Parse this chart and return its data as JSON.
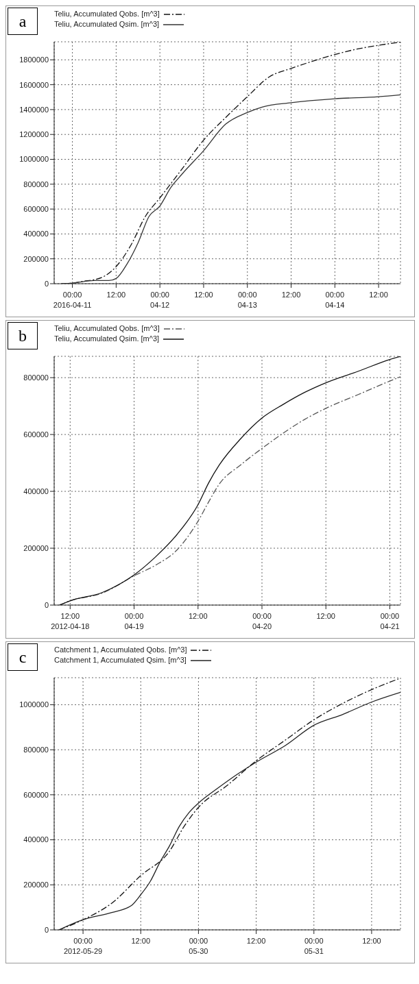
{
  "chart_data": [
    {
      "type": "line",
      "annotations": [
        "a"
      ],
      "legend": "top left",
      "grid": true,
      "marker": "none",
      "xlim": [
        "2016-04-10T19:00",
        "2016-04-14T18:00"
      ],
      "ylim": [
        0,
        1945000
      ],
      "xticks": [
        {
          "value": "2016-04-11T00:00",
          "label": "00:00\n2016-04-11"
        },
        {
          "value": "2016-04-11T12:00",
          "label": "12:00"
        },
        {
          "value": "2016-04-12T00:00",
          "label": "00:00\n04-12"
        },
        {
          "value": "2016-04-12T12:00",
          "label": "12:00"
        },
        {
          "value": "2016-04-13T00:00",
          "label": "00:00\n04-13"
        },
        {
          "value": "2016-04-13T12:00",
          "label": "12:00"
        },
        {
          "value": "2016-04-14T00:00",
          "label": "00:00\n04-14"
        },
        {
          "value": "2016-04-14T12:00",
          "label": "12:00"
        }
      ],
      "yticks": [
        0,
        200000,
        400000,
        600000,
        800000,
        1000000,
        1200000,
        1400000,
        1600000,
        1800000
      ],
      "series": [
        {
          "name": "Teliu, Accumulated Qobs. [m^3]",
          "color": "#111111",
          "line_style": "dashed",
          "x": [
            "2016-04-10T21:00",
            "2016-04-11T00:00",
            "2016-04-11T03:00",
            "2016-04-11T06:00",
            "2016-04-11T09:00",
            "2016-04-11T12:00",
            "2016-04-11T16:00",
            "2016-04-11T20:00",
            "2016-04-12T00:00",
            "2016-04-12T06:00",
            "2016-04-12T12:00",
            "2016-04-12T18:00",
            "2016-04-13T00:00",
            "2016-04-13T06:00",
            "2016-04-13T12:00",
            "2016-04-13T18:00",
            "2016-04-14T00:00",
            "2016-04-14T06:00",
            "2016-04-14T12:00",
            "2016-04-14T18:00"
          ],
          "values": [
            0,
            5000,
            20000,
            32000,
            64000,
            138000,
            307000,
            540000,
            690000,
            920000,
            1155000,
            1335000,
            1504000,
            1663000,
            1731000,
            1790000,
            1843000,
            1886000,
            1917000,
            1943000
          ]
        },
        {
          "name": "Teliu, Accumulated Qsim. [m^3]",
          "color": "#333333",
          "line_style": "solid",
          "x": [
            "2016-04-10T21:00",
            "2016-04-11T00:00",
            "2016-04-11T06:00",
            "2016-04-11T10:00",
            "2016-04-11T12:00",
            "2016-04-11T15:00",
            "2016-04-11T18:00",
            "2016-04-11T21:00",
            "2016-04-12T00:00",
            "2016-04-12T03:00",
            "2016-04-12T06:00",
            "2016-04-12T12:00",
            "2016-04-12T18:00",
            "2016-04-13T00:00",
            "2016-04-13T04:00",
            "2016-04-13T12:00",
            "2016-04-14T00:00",
            "2016-04-14T12:00",
            "2016-04-14T18:00"
          ],
          "values": [
            0,
            5000,
            25000,
            25000,
            42000,
            159000,
            328000,
            540000,
            625000,
            773000,
            879000,
            1070000,
            1282000,
            1377000,
            1420000,
            1455000,
            1487000,
            1504000,
            1519000
          ]
        }
      ]
    },
    {
      "type": "line",
      "annotations": [
        "b"
      ],
      "legend": "top left",
      "grid": true,
      "marker": "none",
      "xlim": [
        "2012-04-18T09:00",
        "2012-04-21T02:00"
      ],
      "ylim": [
        0,
        875000
      ],
      "xticks": [
        {
          "value": "2012-04-18T12:00",
          "label": "12:00\n2012-04-18"
        },
        {
          "value": "2012-04-19T00:00",
          "label": "00:00\n04-19"
        },
        {
          "value": "2012-04-19T12:00",
          "label": "12:00"
        },
        {
          "value": "2012-04-20T00:00",
          "label": "00:00\n04-20"
        },
        {
          "value": "2012-04-20T12:00",
          "label": "12:00"
        },
        {
          "value": "2012-04-21T00:00",
          "label": "00:00\n04-21"
        }
      ],
      "yticks": [
        0,
        200000,
        400000,
        600000,
        800000
      ],
      "series": [
        {
          "name": "Teliu, Accumulated Qobs. [m^3]",
          "color": "#555555",
          "line_style": "dashed",
          "x": [
            "2012-04-18T10:00",
            "2012-04-18T12:00",
            "2012-04-18T18:00",
            "2012-04-19T00:00",
            "2012-04-19T04:00",
            "2012-04-19T08:00",
            "2012-04-19T12:00",
            "2012-04-19T14:00",
            "2012-04-19T16:00",
            "2012-04-19T20:00",
            "2012-04-20T00:00",
            "2012-04-20T04:00",
            "2012-04-20T08:00",
            "2012-04-20T12:00",
            "2012-04-20T18:00",
            "2012-04-21T00:00",
            "2012-04-21T02:00"
          ],
          "values": [
            0,
            15000,
            42000,
            103000,
            140000,
            193000,
            295000,
            363000,
            426000,
            493000,
            551000,
            605000,
            653000,
            692000,
            740000,
            788000,
            803000
          ]
        },
        {
          "name": "Teliu, Accumulated Qsim. [m^3]",
          "color": "#111111",
          "line_style": "solid",
          "x": [
            "2012-04-18T10:00",
            "2012-04-18T12:00",
            "2012-04-18T18:00",
            "2012-04-19T00:00",
            "2012-04-19T04:00",
            "2012-04-19T08:00",
            "2012-04-19T12:00",
            "2012-04-19T14:00",
            "2012-04-19T16:00",
            "2012-04-19T20:00",
            "2012-04-20T00:00",
            "2012-04-20T04:00",
            "2012-04-20T08:00",
            "2012-04-20T12:00",
            "2012-04-20T18:00",
            "2012-04-21T00:00",
            "2012-04-21T02:00"
          ],
          "values": [
            0,
            15000,
            44000,
            106000,
            169000,
            247000,
            353000,
            430000,
            493000,
            585000,
            658000,
            706000,
            748000,
            782000,
            822000,
            864000,
            875000
          ]
        }
      ]
    },
    {
      "type": "line",
      "annotations": [
        "c"
      ],
      "legend": "top left",
      "grid": true,
      "marker": "none",
      "xlim": [
        "2012-05-28T18:00",
        "2012-05-31T18:00"
      ],
      "ylim": [
        0,
        1120000
      ],
      "xticks": [
        {
          "value": "2012-05-29T00:00",
          "label": "00:00\n2012-05-29"
        },
        {
          "value": "2012-05-29T12:00",
          "label": "12:00"
        },
        {
          "value": "2012-05-30T00:00",
          "label": "00:00\n05-30"
        },
        {
          "value": "2012-05-30T12:00",
          "label": "12:00"
        },
        {
          "value": "2012-05-31T00:00",
          "label": "00:00\n05-31"
        },
        {
          "value": "2012-05-31T12:00",
          "label": "12:00"
        }
      ],
      "yticks": [
        0,
        200000,
        400000,
        600000,
        800000,
        1000000
      ],
      "series": [
        {
          "name": "Catchment 1, Accumulated Qobs. [m^3]",
          "color": "#111111",
          "line_style": "dashed",
          "x": [
            "2012-05-28T19:00",
            "2012-05-29T00:00",
            "2012-05-29T06:00",
            "2012-05-29T12:00",
            "2012-05-29T18:00",
            "2012-05-29T21:00",
            "2012-05-30T00:00",
            "2012-05-30T06:00",
            "2012-05-30T12:00",
            "2012-05-30T18:00",
            "2012-05-31T00:00",
            "2012-05-31T06:00",
            "2012-05-31T12:00",
            "2012-05-31T18:00"
          ],
          "values": [
            0,
            45000,
            119000,
            241000,
            350000,
            459000,
            544000,
            642000,
            751000,
            842000,
            933000,
            1006000,
            1067000,
            1118000
          ]
        },
        {
          "name": "Catchment 1, Accumulated Qsim. [m^3]",
          "color": "#222222",
          "line_style": "solid",
          "x": [
            "2012-05-28T19:00",
            "2012-05-29T00:00",
            "2012-05-29T06:00",
            "2012-05-29T10:00",
            "2012-05-29T12:00",
            "2012-05-29T14:00",
            "2012-05-29T16:00",
            "2012-05-29T18:00",
            "2012-05-29T20:00",
            "2012-05-29T22:00",
            "2012-05-30T00:00",
            "2012-05-30T04:00",
            "2012-05-30T08:00",
            "2012-05-30T12:00",
            "2012-05-30T18:00",
            "2012-05-31T00:00",
            "2012-05-31T06:00",
            "2012-05-31T12:00",
            "2012-05-31T18:00"
          ],
          "values": [
            0,
            45000,
            77000,
            107000,
            156000,
            216000,
            301000,
            374000,
            459000,
            520000,
            563000,
            629000,
            690000,
            745000,
            818000,
            909000,
            957000,
            1012000,
            1055000
          ]
        }
      ]
    }
  ]
}
